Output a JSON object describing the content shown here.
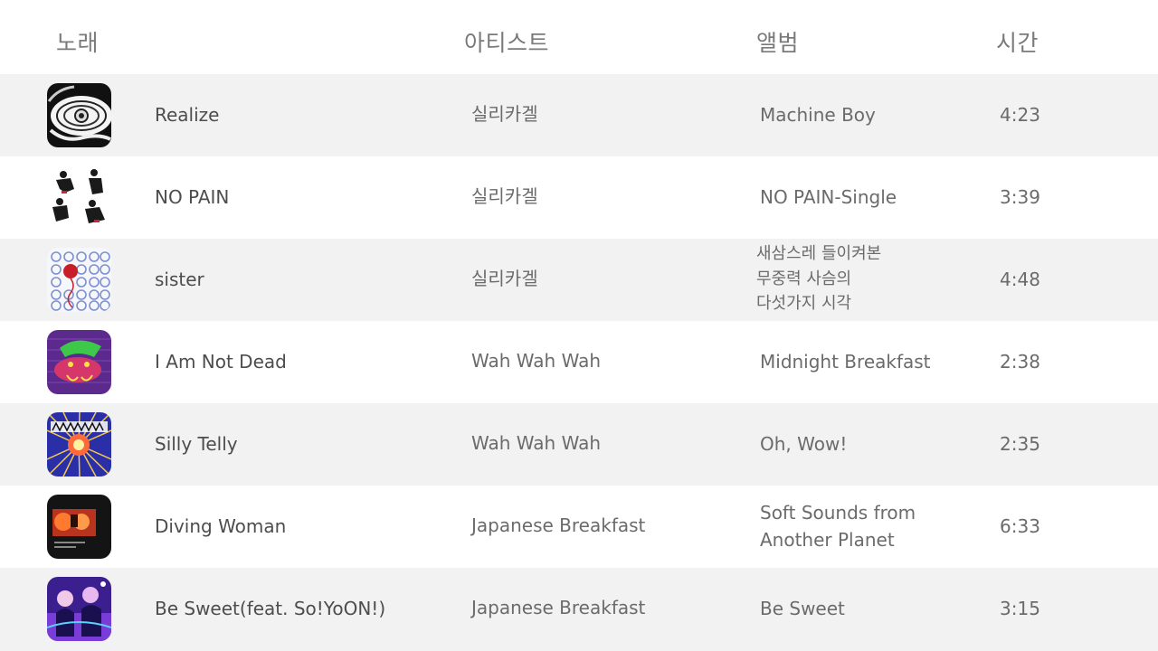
{
  "header": {
    "song": "노래",
    "artist": "아티스트",
    "album": "앨범",
    "time": "시간"
  },
  "tracks": [
    {
      "title": "Realize",
      "artist": "실리카겔",
      "album": "Machine Boy",
      "time": "4:23"
    },
    {
      "title": "NO PAIN",
      "artist": "실리카겔",
      "album": "NO PAIN-Single",
      "time": "3:39"
    },
    {
      "title": "sister",
      "artist": "실리카겔",
      "album_lines": [
        "새삼스레 들이켜본",
        "무중력 사슴의",
        "다섯가지 시각"
      ],
      "time": "4:48"
    },
    {
      "title": "I Am Not Dead",
      "artist": "Wah Wah Wah",
      "album": "Midnight Breakfast",
      "time": "2:38"
    },
    {
      "title": "Silly Telly",
      "artist": "Wah Wah Wah",
      "album": "Oh, Wow!",
      "time": "2:35"
    },
    {
      "title": "Diving Woman",
      "artist": "Japanese Breakfast",
      "album_lines": [
        "Soft Sounds from",
        "Another Planet"
      ],
      "time": "6:33"
    },
    {
      "title": "Be Sweet(feat. So!YoON!)",
      "artist": "Japanese Breakfast",
      "album": "Be Sweet",
      "time": "3:15"
    }
  ],
  "colors": {
    "row_shaded": "#f2f2f2",
    "row_plain": "#ffffff",
    "header_text": "#7a7a7a",
    "title_text": "#4d4d4d",
    "meta_text": "#6b6b6b"
  }
}
